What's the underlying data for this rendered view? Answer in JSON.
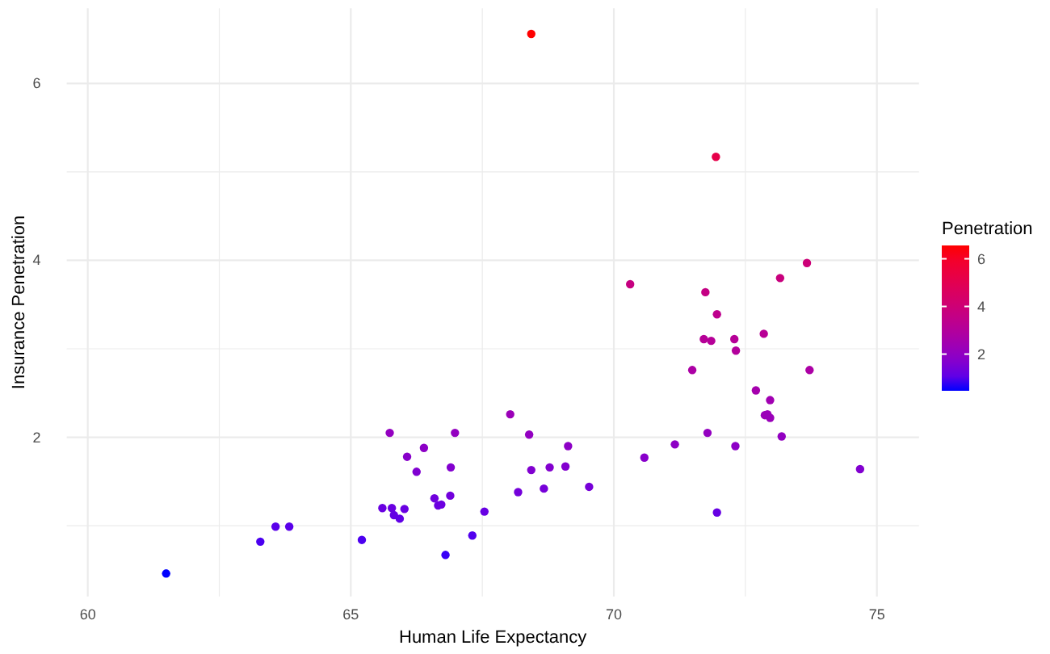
{
  "chart_data": {
    "type": "scatter",
    "xlabel": "Human Life Expectancy",
    "ylabel": "Insurance Penetration",
    "legend_title": "Penetration",
    "x": [
      61.49,
      63.28,
      63.57,
      63.83,
      65.21,
      65.74,
      65.6,
      65.78,
      65.82,
      65.93,
      66.02,
      66.07,
      66.25,
      66.39,
      66.59,
      66.66,
      66.72,
      66.8,
      66.89,
      66.9,
      66.98,
      67.31,
      67.54,
      68.03,
      68.39,
      68.18,
      68.43,
      68.67,
      68.78,
      69.08,
      69.13,
      69.53,
      70.31,
      70.58,
      71.16,
      71.49,
      71.71,
      71.74,
      71.78,
      71.85,
      71.94,
      71.96,
      71.96,
      72.29,
      72.32,
      72.31,
      72.7,
      72.85,
      72.97,
      72.87,
      72.92,
      72.97,
      73.16,
      73.19,
      73.67,
      73.72,
      74.68,
      68.43
    ],
    "values": [
      0.46,
      0.82,
      0.99,
      0.99,
      0.84,
      2.05,
      1.2,
      1.2,
      1.12,
      1.08,
      1.19,
      1.78,
      1.61,
      1.88,
      1.31,
      1.23,
      1.24,
      0.67,
      1.34,
      1.66,
      2.05,
      0.89,
      1.16,
      2.26,
      2.03,
      1.38,
      1.63,
      1.42,
      1.66,
      1.67,
      1.9,
      1.44,
      3.73,
      1.77,
      1.92,
      2.76,
      3.11,
      3.64,
      2.05,
      3.09,
      5.17,
      3.39,
      1.15,
      3.11,
      2.98,
      1.9,
      2.53,
      3.17,
      2.42,
      2.25,
      2.26,
      2.22,
      3.8,
      2.01,
      3.97,
      2.76,
      1.64,
      6.56
    ],
    "cvalues": [
      0.46,
      0.82,
      0.99,
      0.99,
      0.84,
      2.05,
      1.2,
      1.2,
      1.12,
      1.08,
      1.19,
      1.78,
      1.61,
      1.88,
      1.31,
      1.23,
      1.24,
      0.67,
      1.34,
      1.66,
      2.05,
      0.89,
      1.16,
      2.26,
      2.03,
      1.38,
      1.63,
      1.42,
      1.66,
      1.67,
      1.9,
      1.44,
      3.73,
      1.77,
      1.92,
      2.76,
      3.11,
      3.64,
      2.05,
      3.09,
      5.17,
      3.39,
      1.15,
      3.11,
      2.98,
      1.9,
      2.53,
      3.17,
      2.42,
      2.25,
      2.26,
      2.22,
      3.8,
      2.01,
      3.97,
      2.76,
      1.64,
      6.56
    ],
    "clim": [
      0.46,
      6.56
    ],
    "cticks": [
      2,
      4,
      6
    ],
    "xlim": [
      59.6,
      75.8
    ],
    "xticks": [
      60,
      {
        "value": 62.5,
        "label": null
      },
      65,
      {
        "value": 67.5,
        "label": null
      },
      70,
      {
        "value": 72.5,
        "label": null
      },
      75
    ],
    "ylim": [
      0.2,
      6.85
    ],
    "yticks": [
      {
        "value": 1,
        "label": null
      },
      2,
      {
        "value": 3,
        "label": null
      },
      4,
      {
        "value": 5,
        "label": null
      },
      6
    ],
    "grid": true,
    "marker": "circle"
  }
}
